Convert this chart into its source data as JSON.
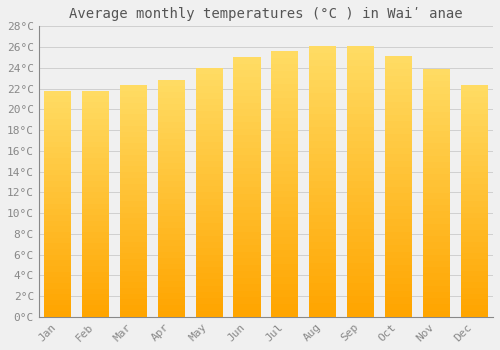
{
  "title": "Average monthly temperatures (°C ) in Waiʹ anae",
  "months": [
    "Jan",
    "Feb",
    "Mar",
    "Apr",
    "May",
    "Jun",
    "Jul",
    "Aug",
    "Sep",
    "Oct",
    "Nov",
    "Dec"
  ],
  "values": [
    21.8,
    21.8,
    22.3,
    22.8,
    24.0,
    25.0,
    25.6,
    26.1,
    26.1,
    25.1,
    23.9,
    22.3
  ],
  "bar_color_bottom": "#FFA500",
  "bar_color_top": "#FFD966",
  "background_color": "#f0f0f0",
  "grid_color": "#d0d0d0",
  "ylim": [
    0,
    28
  ],
  "ytick_step": 2,
  "title_fontsize": 10,
  "tick_fontsize": 8,
  "font_family": "monospace",
  "text_color": "#888888",
  "spine_color": "#888888"
}
